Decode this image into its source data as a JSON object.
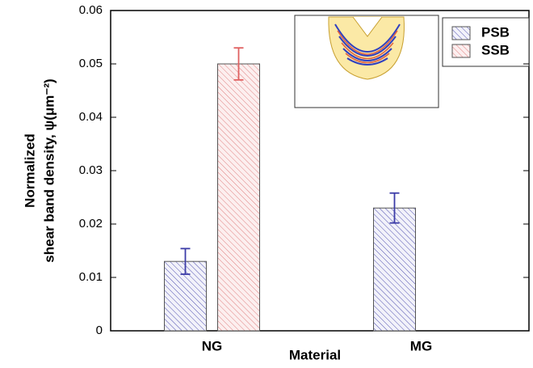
{
  "chart_data": {
    "type": "bar",
    "ylabel": [
      "Normalized",
      "shear band density, ψ(μm⁻²)"
    ],
    "xlabel": "Material",
    "categories": [
      "NG",
      "MG"
    ],
    "series": [
      {
        "name": "PSB",
        "color": "#3c3ca8",
        "values": [
          0.013,
          0.023
        ],
        "errors": [
          0.0024,
          0.0028
        ]
      },
      {
        "name": "SSB",
        "color": "#e06060",
        "values": [
          0.05,
          null
        ],
        "errors": [
          0.003,
          null
        ]
      }
    ],
    "ylim": [
      0,
      0.06
    ],
    "yticks": [
      0,
      0.01,
      0.02,
      0.03,
      0.04,
      0.05,
      0.06
    ]
  }
}
